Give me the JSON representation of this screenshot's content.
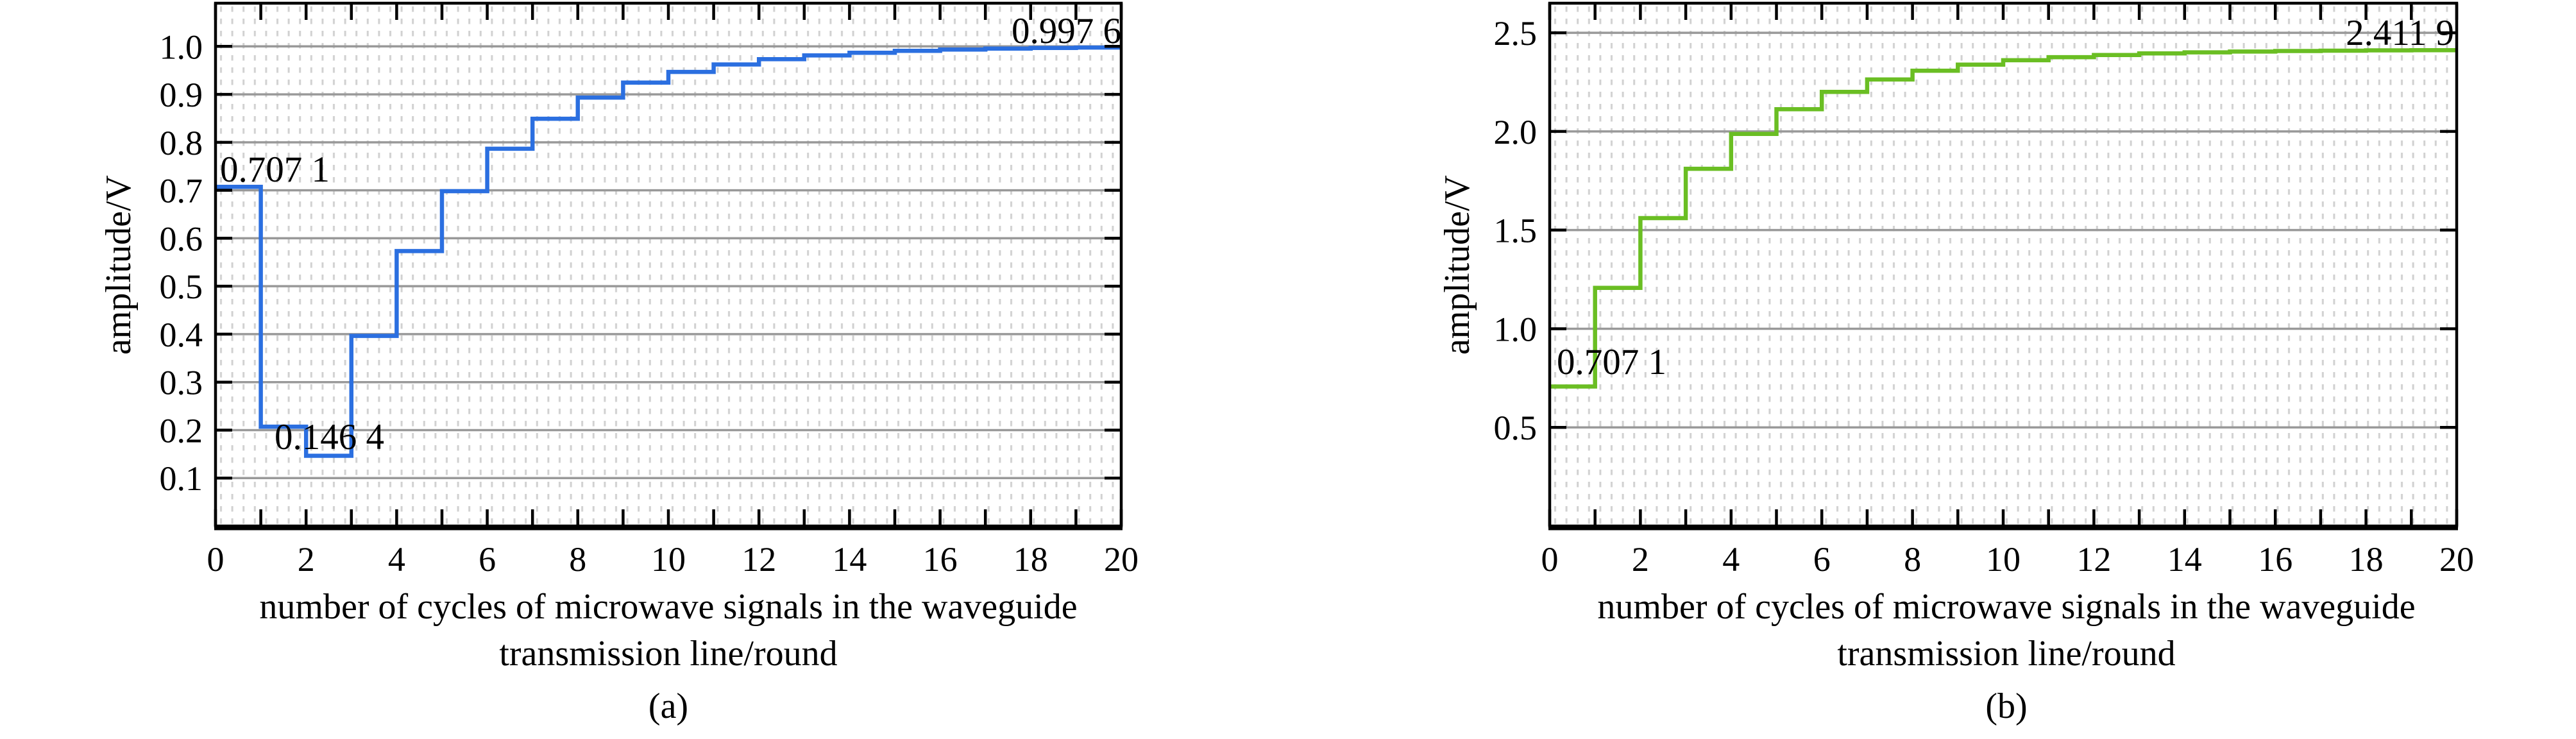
{
  "chart_data": [
    {
      "id": "a",
      "type": "line",
      "subtype": "step-post",
      "panel_label": "(a)",
      "y_title": "amplitude/V",
      "x_title_line1": "number of cycles of microwave signals in the waveguide",
      "x_title_line2": "transmission line/round",
      "line_color": "#2B6FE0",
      "grid_color": "#999999",
      "minor_dot_color": "#d1d1d1",
      "frame_color": "#000000",
      "xlim": [
        0,
        20
      ],
      "ylim": [
        0,
        1.09
      ],
      "grid": "horizontal-major-solid, fine-dotted-mesh",
      "legend_position": "none",
      "x_tick_step": 1,
      "x_label_step": 2,
      "x_tick_labels": [
        "0",
        "2",
        "4",
        "6",
        "8",
        "10",
        "12",
        "14",
        "16",
        "18",
        "20"
      ],
      "y_tick_values": [
        0.1,
        0.2,
        0.3,
        0.4,
        0.5,
        0.6,
        0.7,
        0.8,
        0.9,
        1.0
      ],
      "y_tick_labels": [
        "0.1",
        "0.2",
        "0.3",
        "0.4",
        "0.5",
        "0.6",
        "0.7",
        "0.8",
        "0.9",
        "1.0"
      ],
      "x_step_edges": [
        0,
        1,
        2,
        3,
        4,
        5,
        6,
        7,
        8,
        9,
        10,
        11,
        12,
        13,
        14,
        15,
        16,
        17,
        18,
        19,
        20
      ],
      "values": [
        0.7071,
        0.2071,
        0.1464,
        0.3964,
        0.5732,
        0.6982,
        0.7866,
        0.8491,
        0.8933,
        0.9246,
        0.9467,
        0.9623,
        0.9734,
        0.9812,
        0.9867,
        0.9906,
        0.9934,
        0.9953,
        0.9967,
        0.9976
      ],
      "annotations": [
        {
          "text": "0.707 1",
          "color": "#8E1212",
          "x": 0.1,
          "y": 0.7071,
          "anchor": "start"
        },
        {
          "text": "0.146 4",
          "color": "#8E1212",
          "x": 1.3,
          "y": 0.1464,
          "anchor": "start"
        },
        {
          "text": "0.997 6",
          "color": "#8E1212",
          "x": 20.0,
          "y": 0.9976,
          "anchor": "end"
        }
      ]
    },
    {
      "id": "b",
      "type": "line",
      "subtype": "step-post",
      "panel_label": "(b)",
      "y_title": "amplitude/V",
      "x_title_line1": "number of cycles of microwave signals in the waveguide",
      "x_title_line2": "transmission line/round",
      "line_color": "#6ABE23",
      "grid_color": "#999999",
      "minor_dot_color": "#d1d1d1",
      "frame_color": "#000000",
      "xlim": [
        0,
        20
      ],
      "ylim": [
        0,
        2.65
      ],
      "grid": "horizontal-major-solid, fine-dotted-mesh",
      "legend_position": "none",
      "x_tick_step": 1,
      "x_label_step": 2,
      "x_tick_labels": [
        "0",
        "2",
        "4",
        "6",
        "8",
        "10",
        "12",
        "14",
        "16",
        "18",
        "20"
      ],
      "y_tick_values": [
        0.5,
        1.0,
        1.5,
        2.0,
        2.5
      ],
      "y_tick_labels": [
        "0.5",
        "1.0",
        "1.5",
        "2.0",
        "2.5"
      ],
      "x_step_edges": [
        0,
        1,
        2,
        3,
        4,
        5,
        6,
        7,
        8,
        9,
        10,
        11,
        12,
        13,
        14,
        15,
        16,
        17,
        18,
        19,
        20
      ],
      "values": [
        0.7071,
        1.2071,
        1.5607,
        1.8107,
        1.9874,
        2.1124,
        2.2008,
        2.2633,
        2.3075,
        2.3388,
        2.3609,
        2.3765,
        2.3876,
        2.3954,
        2.4009,
        2.4048,
        2.4076,
        2.4095,
        2.4109,
        2.4119
      ],
      "annotations": [
        {
          "text": "0.707 1",
          "color": "#6433DE",
          "x": 0.15,
          "y": 0.7071,
          "anchor": "start"
        },
        {
          "text": "2.411 9",
          "color": "#6433DE",
          "x": 19.9,
          "y": 2.4119,
          "anchor": "end"
        }
      ]
    }
  ]
}
